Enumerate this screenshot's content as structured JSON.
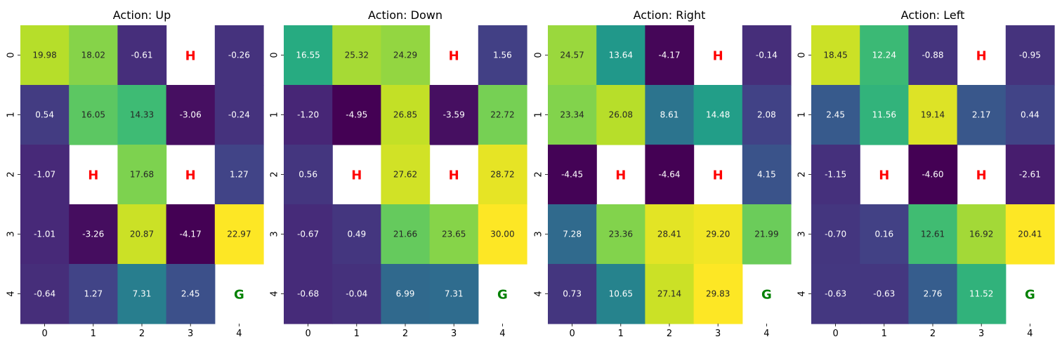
{
  "chart_data": [
    {
      "type": "heatmap",
      "title": "Action: Up",
      "x_ticks": [
        "0",
        "1",
        "2",
        "3",
        "4"
      ],
      "y_ticks": [
        "0",
        "1",
        "2",
        "3",
        "4"
      ],
      "values": [
        [
          "19.98",
          "18.02",
          "-0.61",
          "H",
          "-0.26"
        ],
        [
          "0.54",
          "16.05",
          "14.33",
          "-3.06",
          "-0.24"
        ],
        [
          "-1.07",
          "H",
          "17.68",
          "H",
          "1.27"
        ],
        [
          "-1.01",
          "-3.26",
          "20.87",
          "-4.17",
          "22.97"
        ],
        [
          "-0.64",
          "1.27",
          "7.31",
          "2.45",
          "G"
        ]
      ],
      "colormap": "viridis"
    },
    {
      "type": "heatmap",
      "title": "Action: Down",
      "x_ticks": [
        "0",
        "1",
        "2",
        "3",
        "4"
      ],
      "y_ticks": [
        "0",
        "1",
        "2",
        "3",
        "4"
      ],
      "values": [
        [
          "16.55",
          "25.32",
          "24.29",
          "H",
          "1.56"
        ],
        [
          "-1.20",
          "-4.95",
          "26.85",
          "-3.59",
          "22.72"
        ],
        [
          "0.56",
          "H",
          "27.62",
          "H",
          "28.72"
        ],
        [
          "-0.67",
          "0.49",
          "21.66",
          "23.65",
          "30.00"
        ],
        [
          "-0.68",
          "-0.04",
          "6.99",
          "7.31",
          "G"
        ]
      ],
      "colormap": "viridis"
    },
    {
      "type": "heatmap",
      "title": "Action: Right",
      "x_ticks": [
        "0",
        "1",
        "2",
        "3",
        "4"
      ],
      "y_ticks": [
        "0",
        "1",
        "2",
        "3",
        "4"
      ],
      "values": [
        [
          "24.57",
          "13.64",
          "-4.17",
          "H",
          "-0.14"
        ],
        [
          "23.34",
          "26.08",
          "8.61",
          "14.48",
          "2.08"
        ],
        [
          "-4.45",
          "H",
          "-4.64",
          "H",
          "4.15"
        ],
        [
          "7.28",
          "23.36",
          "28.41",
          "29.20",
          "21.99"
        ],
        [
          "0.73",
          "10.65",
          "27.14",
          "29.83",
          "G"
        ]
      ],
      "colormap": "viridis"
    },
    {
      "type": "heatmap",
      "title": "Action: Left",
      "x_ticks": [
        "0",
        "1",
        "2",
        "3",
        "4"
      ],
      "y_ticks": [
        "0",
        "1",
        "2",
        "3",
        "4"
      ],
      "values": [
        [
          "18.45",
          "12.24",
          "-0.88",
          "H",
          "-0.95"
        ],
        [
          "2.45",
          "11.56",
          "19.14",
          "2.17",
          "0.44"
        ],
        [
          "-1.15",
          "H",
          "-4.60",
          "H",
          "-2.61"
        ],
        [
          "-0.70",
          "0.16",
          "12.61",
          "16.92",
          "20.41"
        ],
        [
          "-0.63",
          "-0.63",
          "2.76",
          "11.52",
          "G"
        ]
      ],
      "colormap": "viridis"
    }
  ],
  "colors": {
    "hole_marker": "#ff0000",
    "goal_marker": "#008000"
  }
}
